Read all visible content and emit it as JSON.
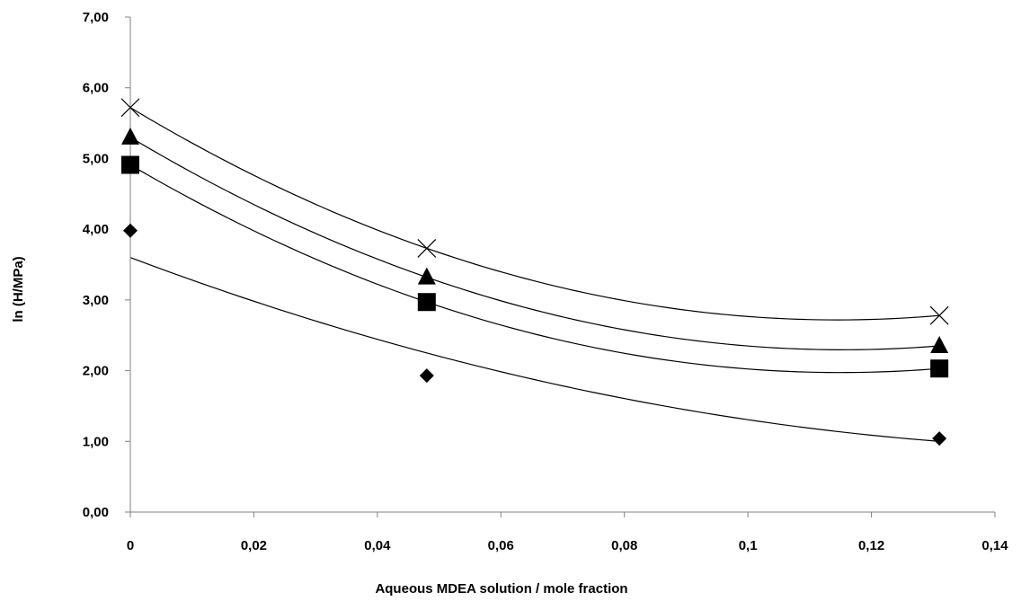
{
  "chart_data": {
    "type": "scatter",
    "title": "",
    "xlabel": "Aqueous MDEA solution / mole fraction",
    "ylabel": "ln (H/MPa)",
    "xlim": [
      0,
      0.14
    ],
    "ylim": [
      0,
      7
    ],
    "x_ticks": [
      {
        "value": 0,
        "label": "0"
      },
      {
        "value": 0.02,
        "label": "0,02"
      },
      {
        "value": 0.04,
        "label": "0,04"
      },
      {
        "value": 0.06,
        "label": "0,06"
      },
      {
        "value": 0.08,
        "label": "0,08"
      },
      {
        "value": 0.1,
        "label": "0,1"
      },
      {
        "value": 0.12,
        "label": "0,12"
      },
      {
        "value": 0.14,
        "label": "0,14"
      }
    ],
    "y_ticks": [
      {
        "value": 0,
        "label": "0,00"
      },
      {
        "value": 1,
        "label": "1,00"
      },
      {
        "value": 2,
        "label": "2,00"
      },
      {
        "value": 3,
        "label": "3,00"
      },
      {
        "value": 4,
        "label": "4,00"
      },
      {
        "value": 5,
        "label": "5,00"
      },
      {
        "value": 6,
        "label": "6,00"
      },
      {
        "value": 7,
        "label": "7,00"
      }
    ],
    "grid": false,
    "legend": "none",
    "series": [
      {
        "marker": "diamond",
        "points": [
          {
            "x": 0,
            "y": 3.98
          },
          {
            "x": 0.048,
            "y": 1.93
          },
          {
            "x": 0.131,
            "y": 1.04
          }
        ],
        "fit": [
          {
            "x": 0,
            "y": 3.6
          },
          {
            "x": 0.048,
            "y": 2.25
          },
          {
            "x": 0.131,
            "y": 1.0
          }
        ]
      },
      {
        "marker": "square",
        "points": [
          {
            "x": 0,
            "y": 4.91
          },
          {
            "x": 0.048,
            "y": 2.97
          },
          {
            "x": 0.131,
            "y": 2.03
          }
        ],
        "fit": [
          {
            "x": 0,
            "y": 4.91
          },
          {
            "x": 0.048,
            "y": 2.97
          },
          {
            "x": 0.131,
            "y": 2.03
          }
        ]
      },
      {
        "marker": "triangle",
        "points": [
          {
            "x": 0,
            "y": 5.3
          },
          {
            "x": 0.048,
            "y": 3.32
          },
          {
            "x": 0.131,
            "y": 2.35
          }
        ],
        "fit": [
          {
            "x": 0,
            "y": 5.3
          },
          {
            "x": 0.048,
            "y": 3.32
          },
          {
            "x": 0.131,
            "y": 2.35
          }
        ]
      },
      {
        "marker": "x",
        "points": [
          {
            "x": 0,
            "y": 5.72
          },
          {
            "x": 0.048,
            "y": 3.73
          },
          {
            "x": 0.131,
            "y": 2.78
          }
        ],
        "fit": [
          {
            "x": 0,
            "y": 5.72
          },
          {
            "x": 0.048,
            "y": 3.73
          },
          {
            "x": 0.131,
            "y": 2.78
          }
        ]
      }
    ]
  }
}
